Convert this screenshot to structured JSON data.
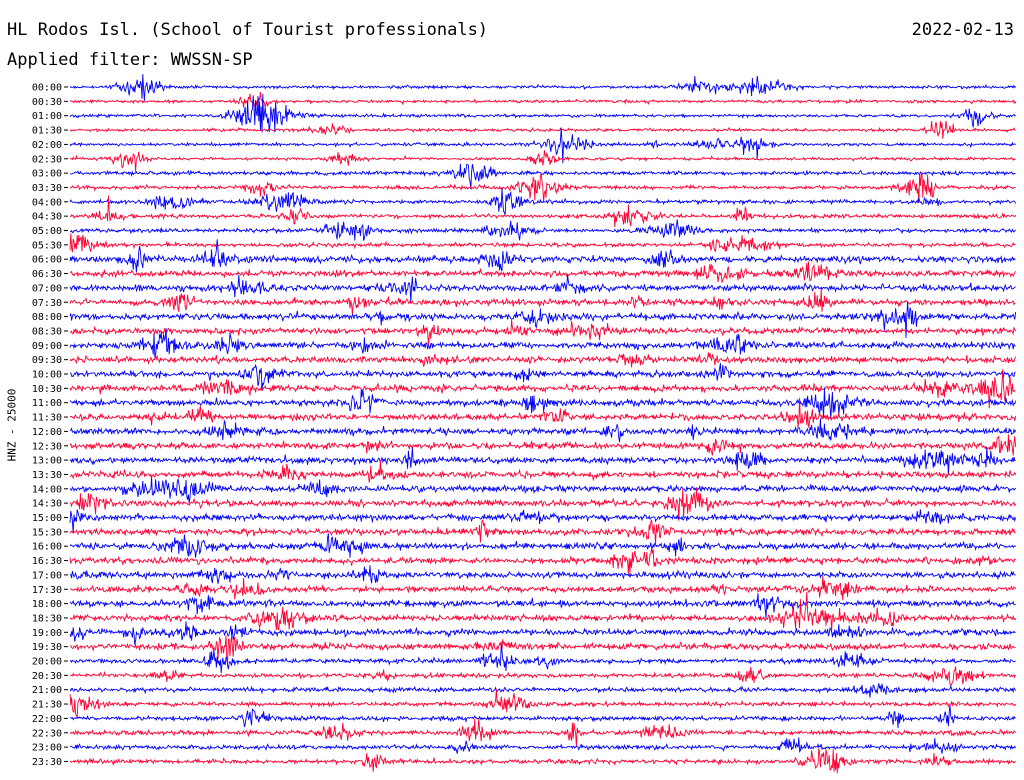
{
  "header": {
    "station_title": "HL Rodos Isl. (School of Tourist professionals)",
    "date": "2022-02-13",
    "filter_label": "Applied filter: WWSSN-SP"
  },
  "chart_data": {
    "type": "line",
    "title": "HL Rodos Isl. (School of Tourist professionals)",
    "ylabel": "HNZ - 25000",
    "xlabel": "",
    "tick_labels": [
      "00:00",
      "00:30",
      "01:00",
      "01:30",
      "02:00",
      "02:30",
      "03:00",
      "03:30",
      "04:00",
      "04:30",
      "05:00",
      "05:30",
      "06:00",
      "06:30",
      "07:00",
      "07:30",
      "08:00",
      "08:30",
      "09:00",
      "09:30",
      "10:00",
      "10:30",
      "11:00",
      "11:30",
      "12:00",
      "12:30",
      "13:00",
      "13:30",
      "14:00",
      "14:30",
      "15:00",
      "15:30",
      "16:00",
      "16:30",
      "17:00",
      "17:30",
      "18:00",
      "18:30",
      "19:00",
      "19:30",
      "20:00",
      "20:30",
      "21:00",
      "21:30",
      "22:00",
      "22:30",
      "23:00",
      "23:30"
    ],
    "series_colors": [
      "#0000ff",
      "#ff0033"
    ],
    "color_pattern": "alternating per 30-minute line, starting with blue at 00:00",
    "grid": false
  },
  "colors": {
    "blue_trace": "#0000ff",
    "red_trace": "#ff0033",
    "background": "#ffffff",
    "text": "#000000"
  }
}
